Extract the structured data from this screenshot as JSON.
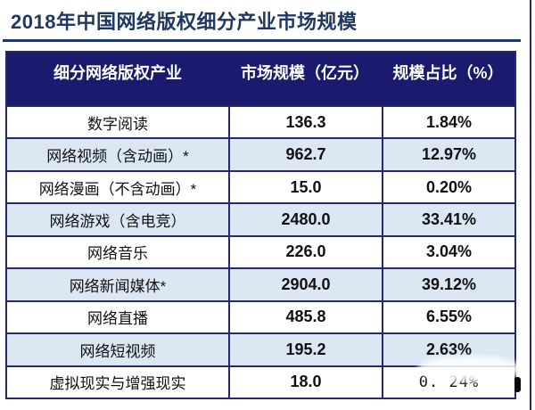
{
  "page": {
    "title": "2018年中国网络版权细分产业市场规模"
  },
  "colors": {
    "title_text": "#1f3864",
    "header_bg": "#1a1a6e",
    "header_text": "#ffffff",
    "table_border": "#28286e",
    "row_bg": "#ffffff",
    "row_alt_bg": "#dce7f4",
    "cell_text": "#111111"
  },
  "chart_data": {
    "type": "table",
    "title": "2018年中国网络版权细分产业市场规模",
    "columns": [
      "细分网络版权产业",
      "市场规模（亿元）",
      "规模占比（%）"
    ],
    "rows": [
      {
        "industry": "数字阅读",
        "scale": "136.3",
        "share": "1.84%"
      },
      {
        "industry": "网络视频（含动画）*",
        "scale": "962.7",
        "share": "12.97%"
      },
      {
        "industry": "网络漫画（不含动画）*",
        "scale": "15.0",
        "share": "0.20%"
      },
      {
        "industry": "网络游戏（含电竞）",
        "scale": "2480.0",
        "share": "33.41%"
      },
      {
        "industry": "网络音乐",
        "scale": "226.0",
        "share": "3.04%"
      },
      {
        "industry": "网络新闻媒体*",
        "scale": "2904.0",
        "share": "39.12%"
      },
      {
        "industry": "网络直播",
        "scale": "485.8",
        "share": "6.55%"
      },
      {
        "industry": "网络短视频",
        "scale": "195.2",
        "share": "2.63%"
      },
      {
        "industry": "虚拟现实与增强现实",
        "scale": "18.0",
        "share": "0. 24%"
      }
    ]
  }
}
